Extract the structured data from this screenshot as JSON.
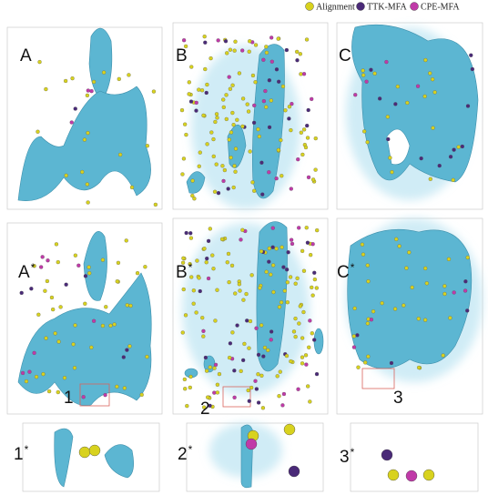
{
  "legend": [
    {
      "label": "Alignment",
      "color": "#d8d21e"
    },
    {
      "label": "TTK-MFA",
      "color": "#4a2a78"
    },
    {
      "label": "CPE-MFA",
      "color": "#c03aa8"
    }
  ],
  "panels": [
    {
      "label": "A"
    },
    {
      "label": "B"
    },
    {
      "label": "C"
    },
    {
      "label": "A",
      "mark": "*"
    },
    {
      "label": "B",
      "mark": "*"
    },
    {
      "label": "C",
      "mark": "*"
    },
    {
      "label": "1",
      "mark": "*"
    },
    {
      "label": "2",
      "mark": "*"
    },
    {
      "label": "3",
      "mark": "*"
    }
  ],
  "regions": [
    "1",
    "2",
    "3"
  ]
}
